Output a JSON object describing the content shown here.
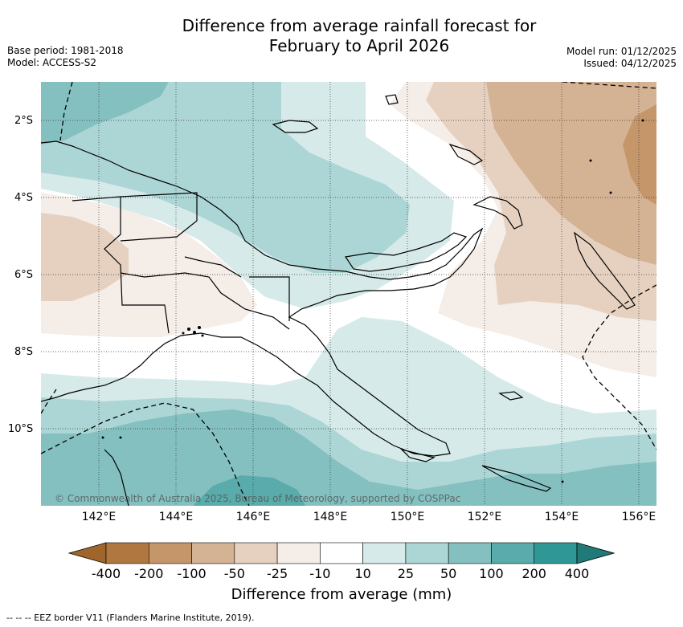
{
  "title": {
    "line1": "Difference from average rainfall forecast for",
    "line2": "February to April 2026"
  },
  "meta": {
    "base_period": "Base period: 1981-2018",
    "model": "Model: ACCESS-S2",
    "model_run": "Model run: 01/12/2025",
    "issued": "Issued: 04/12/2025"
  },
  "map": {
    "lat_labels": [
      "2°S",
      "4°S",
      "6°S",
      "8°S",
      "10°S"
    ],
    "lon_labels": [
      "142°E",
      "144°E",
      "146°E",
      "148°E",
      "150°E",
      "152°E",
      "154°E",
      "156°E"
    ],
    "copyright": "© Commonwealth of Australia 2025, Bureau of Meteorology, supported by COSPPac"
  },
  "colorbar": {
    "title": "Difference from average (mm)",
    "labels": [
      "-400",
      "-200",
      "-100",
      "-50",
      "-25",
      "-10",
      "10",
      "25",
      "50",
      "100",
      "200",
      "400"
    ],
    "colors": [
      "#a0652a",
      "#b07840",
      "#c4966a",
      "#d4b294",
      "#e6d1c0",
      "#f5ede8",
      "#ffffff",
      "#d6eae9",
      "#acd6d5",
      "#84c0c0",
      "#5aabab",
      "#2f9896",
      "#1f7a78"
    ]
  },
  "footnote": "-- -- -- EEZ border V11 (Flanders Marine Institute, 2019).",
  "colors": {
    "land_outline": "#000000",
    "grid": "#333333",
    "eez": "#000000"
  }
}
